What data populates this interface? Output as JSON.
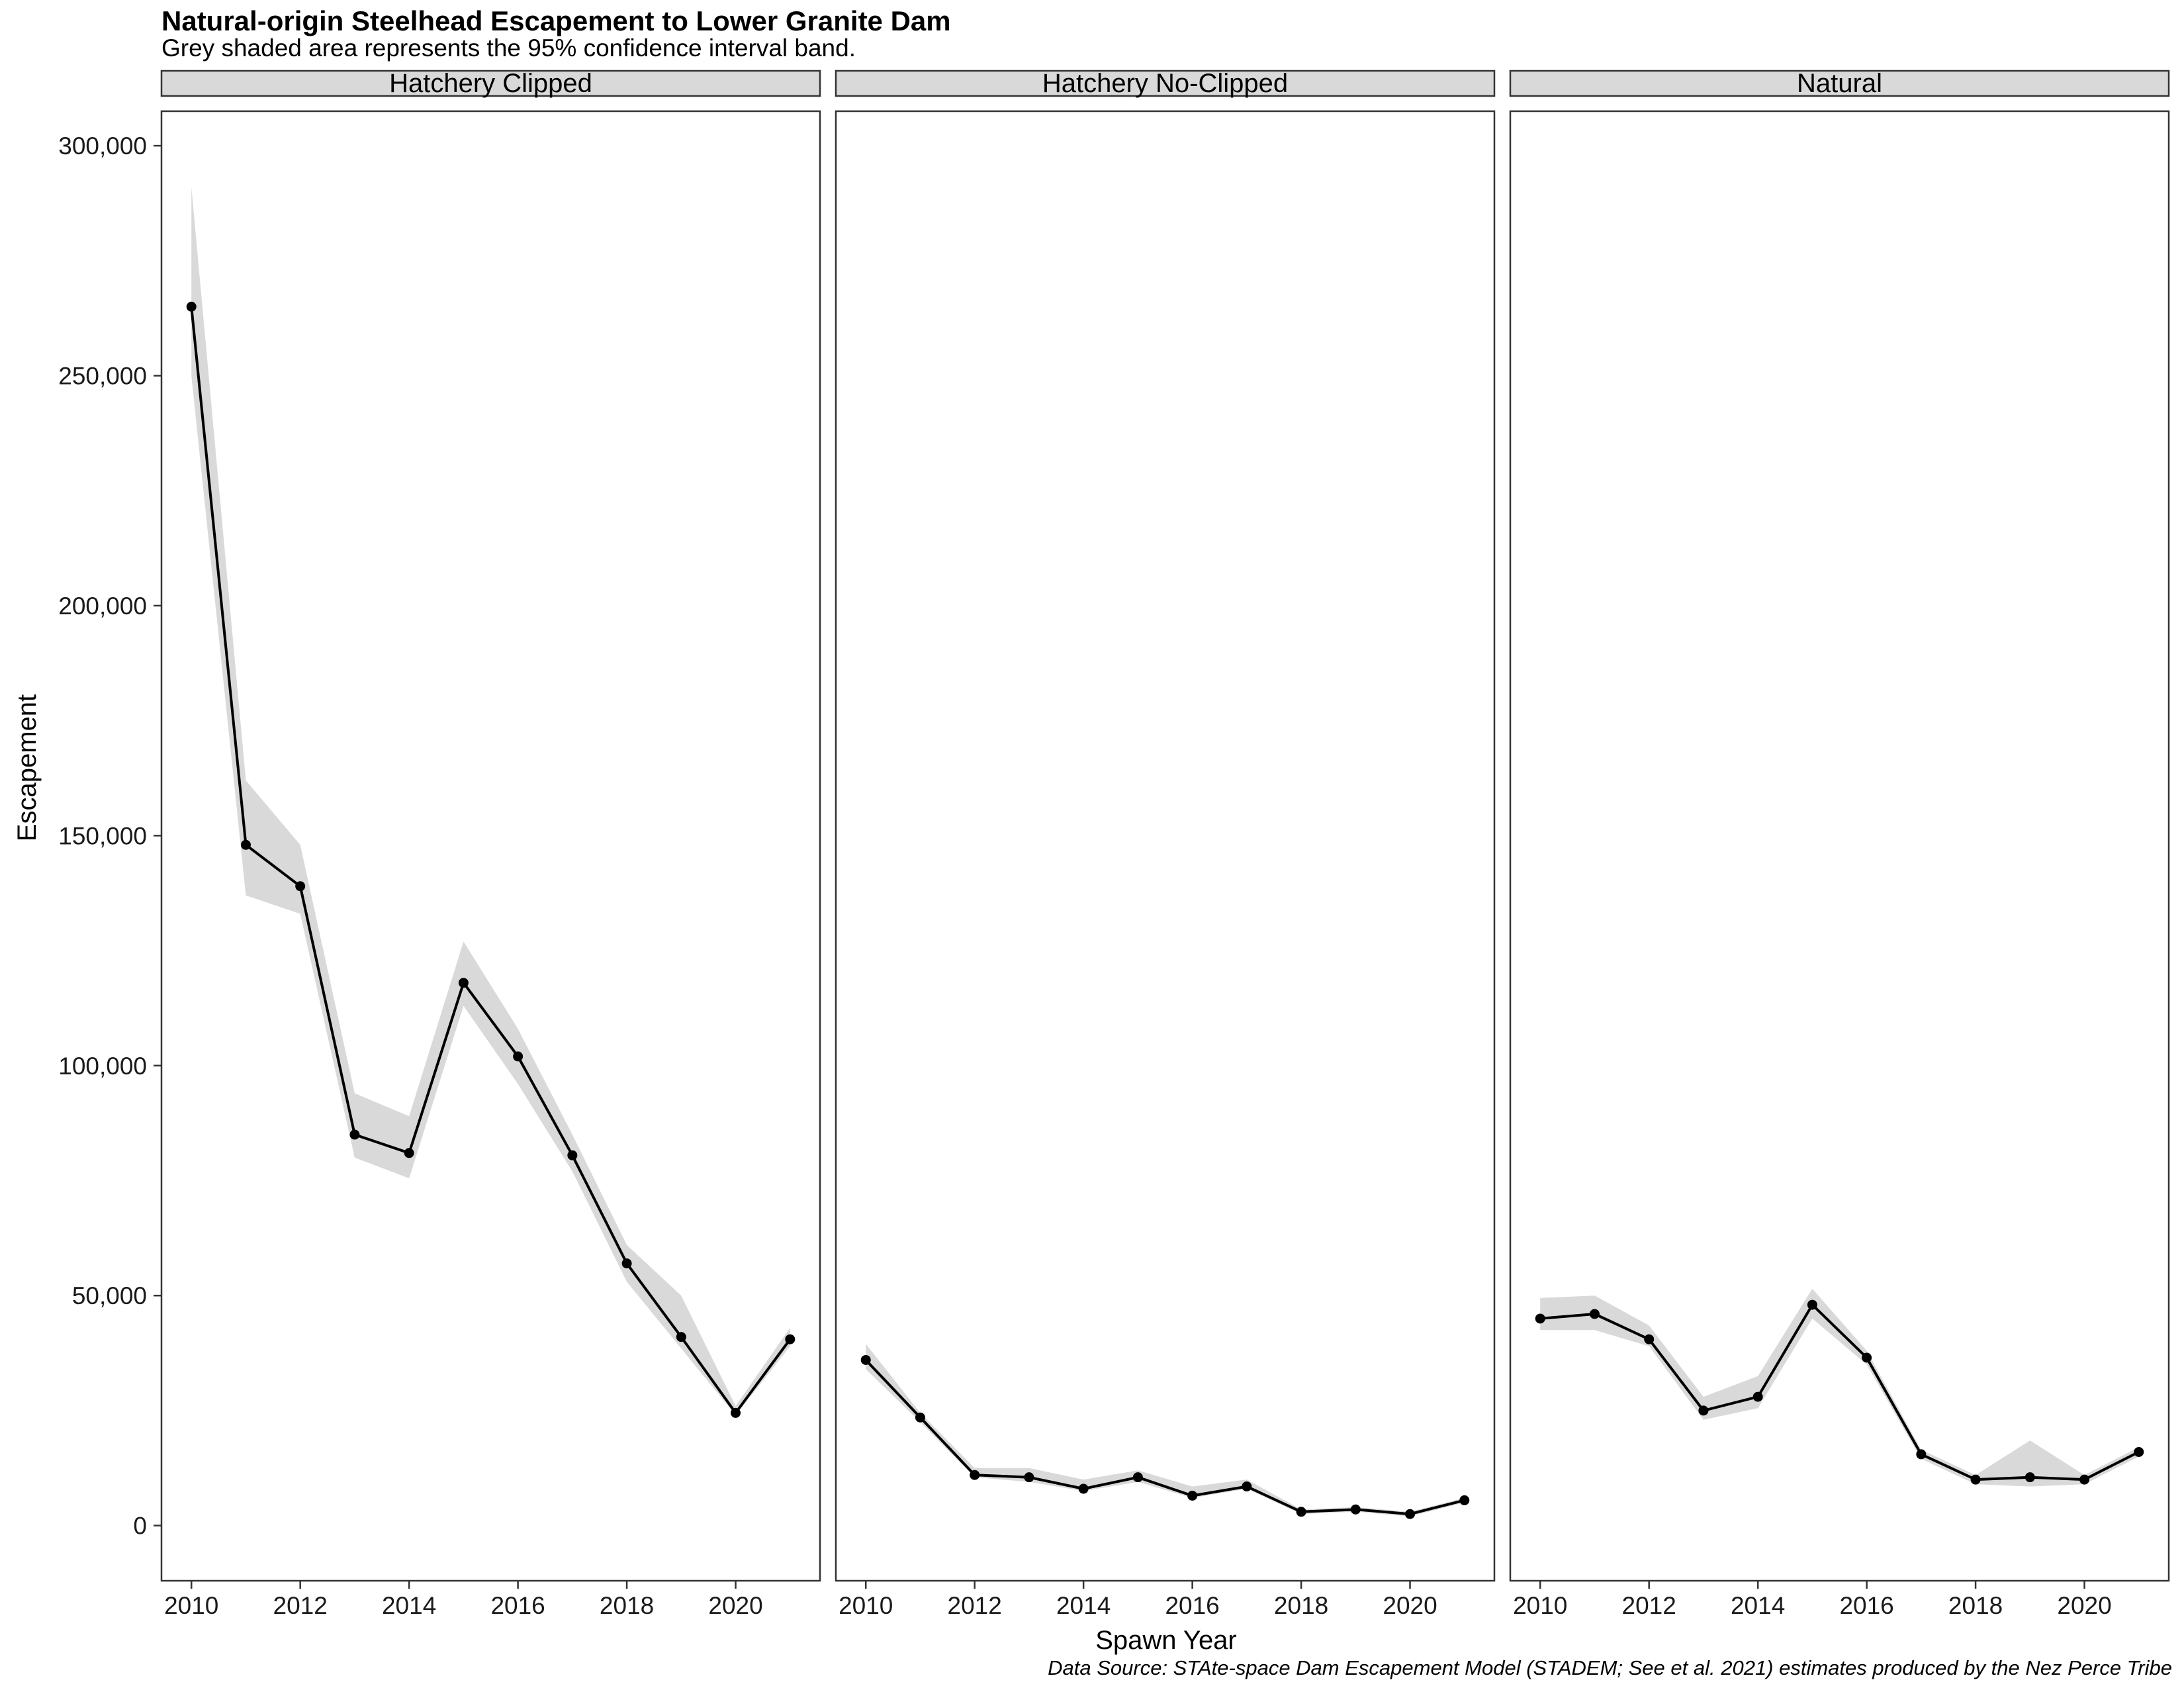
{
  "chart_data": {
    "type": "line",
    "title": "Natural-origin Steelhead Escapement to Lower Granite Dam",
    "subtitle": "Grey shaded area represents the 95% confidence interval band.",
    "xlabel": "Spawn Year",
    "ylabel": "Escapement",
    "caption": "Data Source: STAte-space Dam Escapement Model (STADEM; See et al. 2021) estimates produced by the Nez Perce Tribe",
    "xlim": [
      2009.45,
      2021.55
    ],
    "ylim": [
      -12000,
      307500
    ],
    "x_ticks": [
      2010,
      2012,
      2014,
      2016,
      2018,
      2020
    ],
    "x_tick_labels": [
      "2010",
      "2012",
      "2014",
      "2016",
      "2018",
      "2020"
    ],
    "y_ticks": [
      0,
      50000,
      100000,
      150000,
      200000,
      250000,
      300000
    ],
    "y_tick_labels": [
      "0",
      "50,000",
      "100,000",
      "150,000",
      "200,000",
      "250,000",
      "300,000"
    ],
    "grid": false,
    "colors": {
      "line": "#000000",
      "ribbon": "#d9d9d9",
      "strip": "#d9d9d9",
      "border": "#333333"
    },
    "panels": [
      {
        "label": "Hatchery Clipped",
        "x": [
          2010,
          2011,
          2012,
          2013,
          2014,
          2015,
          2016,
          2017,
          2018,
          2019,
          2020,
          2021
        ],
        "y": [
          265000,
          148000,
          139000,
          85000,
          81000,
          118000,
          102000,
          80500,
          57000,
          41000,
          24500,
          40500
        ],
        "lower": [
          250000,
          137000,
          133000,
          80000,
          75500,
          113000,
          96000,
          77000,
          53000,
          38500,
          24000,
          39000
        ],
        "upper": [
          291000,
          162000,
          148000,
          94000,
          89000,
          127000,
          108000,
          85000,
          61000,
          50000,
          26000,
          43000
        ]
      },
      {
        "label": "Hatchery No-Clipped",
        "x": [
          2010,
          2011,
          2012,
          2013,
          2014,
          2015,
          2016,
          2017,
          2018,
          2019,
          2020,
          2021
        ],
        "y": [
          36000,
          23500,
          11000,
          10500,
          8000,
          10500,
          6500,
          8500,
          3000,
          3500,
          2500,
          5500
        ],
        "lower": [
          34000,
          22500,
          10500,
          9500,
          7500,
          9500,
          6000,
          8000,
          2500,
          3000,
          2000,
          5000
        ],
        "upper": [
          39500,
          24500,
          12500,
          12500,
          10000,
          12000,
          8500,
          10000,
          3500,
          4000,
          3000,
          6000
        ]
      },
      {
        "label": "Natural",
        "x": [
          2010,
          2011,
          2012,
          2013,
          2014,
          2015,
          2016,
          2017,
          2018,
          2019,
          2020,
          2021
        ],
        "y": [
          45000,
          46000,
          40500,
          25000,
          28000,
          48000,
          36500,
          15500,
          10000,
          10500,
          10000,
          16000
        ],
        "lower": [
          42500,
          42500,
          39000,
          23000,
          25500,
          45000,
          35000,
          14500,
          9000,
          8500,
          9000,
          15000
        ],
        "upper": [
          49500,
          50000,
          43500,
          28000,
          32500,
          51500,
          38000,
          16500,
          11000,
          18500,
          11000,
          17000
        ]
      }
    ]
  }
}
